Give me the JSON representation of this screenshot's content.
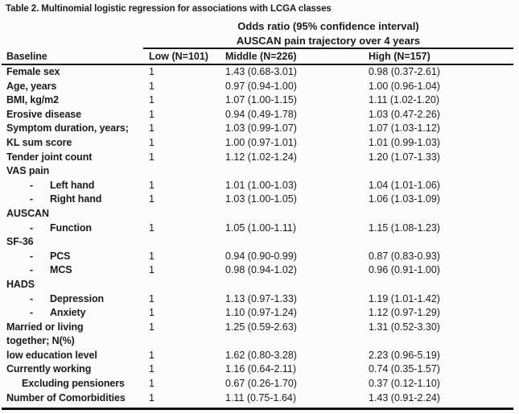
{
  "title": "Table 2. Multinomial logistic regression for associations with LCGA classes",
  "spanner": {
    "line1": "Odds ratio (95% confidence interval)",
    "line2": "AUSCAN pain trajectory over 4 years"
  },
  "header": {
    "baseline": "Baseline",
    "low": "Low (N=101)",
    "middle": "Middle (N=226)",
    "high": "High (N=157)"
  },
  "rows": [
    {
      "label": "Female sex",
      "low": "1",
      "middle": "1.43 (0.68-3.01)",
      "high": "0.98 (0.37-2.61)"
    },
    {
      "label": "Age, years",
      "low": "1",
      "middle": "0.97 (0.94-1.00)",
      "high": "1.00 (0.96-1.04)"
    },
    {
      "label": "BMI, kg/m2",
      "low": "1",
      "middle": "1.07 (1.00-1.15)",
      "high": "1.11 (1.02-1.20)"
    },
    {
      "label": "Erosive disease",
      "low": "1",
      "middle": "0.94 (0.49-1.78)",
      "high": "1.03 (0.47-2.26)"
    },
    {
      "label": "Symptom duration, years;",
      "low": "1",
      "middle": "1.03 (0.99-1.07)",
      "high": "1.07 (1.03-1.12)"
    },
    {
      "label": "KL sum score",
      "low": "1",
      "middle": "1.00 (0.97-1.01)",
      "high": "1.01 (0.99-1.03)"
    },
    {
      "label": "Tender joint count",
      "low": "1",
      "middle": "1.12 (1.02-1.24)",
      "high": "1.20 (1.07-1.33)"
    },
    {
      "label": "VAS pain"
    },
    {
      "bullet": "-",
      "label": "Left hand",
      "low": "1",
      "middle": "1.01 (1.00-1.03)",
      "high": "1.04 (1.01-1.06)"
    },
    {
      "bullet": "-",
      "label": "Right hand",
      "low": "1",
      "middle": "1.03 (1.00-1.05)",
      "high": "1.06 (1.03-1.09)"
    },
    {
      "label": "AUSCAN"
    },
    {
      "bullet": "-",
      "label": "Function",
      "low": "1",
      "middle": "1.05 (1.00-1.11)",
      "high": "1.15 (1.08-1.23)"
    },
    {
      "label": "SF-36"
    },
    {
      "bullet": "-",
      "label": "PCS",
      "low": "1",
      "middle": "0.94 (0.90-0.99)",
      "high": "0.87 (0.83-0.93)"
    },
    {
      "bullet": "-",
      "label": "MCS",
      "low": "1",
      "middle": "0.98 (0.94-1.02)",
      "high": "0.96 (0.91-1.00)"
    },
    {
      "label": "HADS"
    },
    {
      "bullet": "-",
      "label": "Depression",
      "low": "1",
      "middle": "1.13 (0.97-1.33)",
      "high": "1.19 (1.01-1.42)"
    },
    {
      "bullet": "-",
      "label": "Anxiety",
      "low": "1",
      "middle": "1.10 (0.97-1.24)",
      "high": "1.12 (0.97-1.29)"
    },
    {
      "label": "Married or living",
      "label2": "together; N(%)",
      "low": "1",
      "middle": "1.25 (0.59-2.63)",
      "high": "1.31 (0.52-3.30)"
    },
    {
      "label": "low education level",
      "low": "1",
      "middle": "1.62 (0.80-3.28)",
      "high": "2.23 (0.96-5.19)"
    },
    {
      "label": "Currently working",
      "low": "1",
      "middle": "1.16 (0.64-2.11)",
      "high": "0.74 (0.35-1.57)"
    },
    {
      "label": "Excluding pensioners",
      "low": "1",
      "middle": "0.67 (0.26-1.70)",
      "high": "0.37 (0.12-1.10)"
    },
    {
      "label": "Number of Comorbidities",
      "low": "1",
      "middle": "1.11 (0.75-1.64)",
      "high": "1.43 (0.91-2.24)"
    }
  ]
}
